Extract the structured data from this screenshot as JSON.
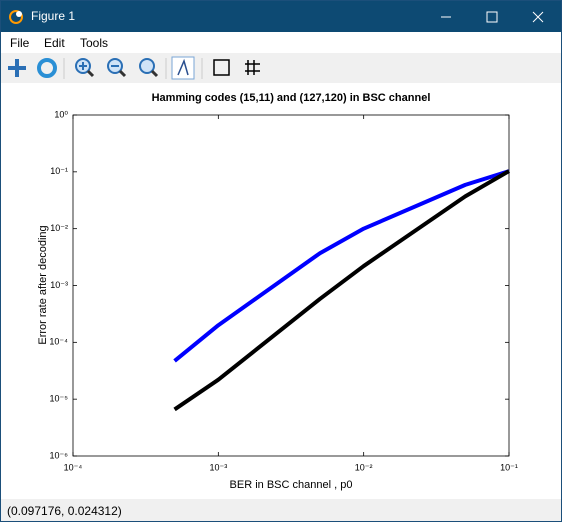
{
  "window": {
    "title": "Figure 1",
    "menu": [
      "File",
      "Edit",
      "Tools"
    ],
    "status": "(0.097176, 0.024312)"
  },
  "chart_data": {
    "type": "line",
    "title": "Hamming codes (15,11) and (127,120) in BSC channel",
    "x_label": "BER in BSC channel , p0",
    "y_label": "Error rate after decoding",
    "x": [
      0.0005,
      0.001,
      0.005,
      0.01,
      0.05,
      0.1
    ],
    "series": [
      {
        "color": "#0000ff",
        "values": [
          4.7e-05,
          0.0002,
          0.0037,
          0.01,
          0.059,
          0.103
        ]
      },
      {
        "color": "#000000",
        "values": [
          6.6e-06,
          2.2e-05,
          0.00058,
          0.0022,
          0.037,
          0.103
        ]
      }
    ],
    "xscale": "log",
    "yscale": "log",
    "xlim": [
      0.0001,
      0.1
    ],
    "ylim": [
      1e-06,
      1
    ],
    "xticks": [
      {
        "value": 0.0001,
        "label": "10⁻⁴"
      },
      {
        "value": 0.001,
        "label": "10⁻³"
      },
      {
        "value": 0.01,
        "label": "10⁻²"
      },
      {
        "value": 0.1,
        "label": "10⁻¹"
      }
    ],
    "yticks": [
      {
        "value": 1e-06,
        "label": "10⁻⁶"
      },
      {
        "value": 1e-05,
        "label": "10⁻⁵"
      },
      {
        "value": 0.0001,
        "label": "10⁻⁴"
      },
      {
        "value": 0.001,
        "label": "10⁻³"
      },
      {
        "value": 0.01,
        "label": "10⁻²"
      },
      {
        "value": 0.1,
        "label": "10⁻¹"
      },
      {
        "value": 1,
        "label": "10⁰"
      }
    ],
    "grid": false
  }
}
